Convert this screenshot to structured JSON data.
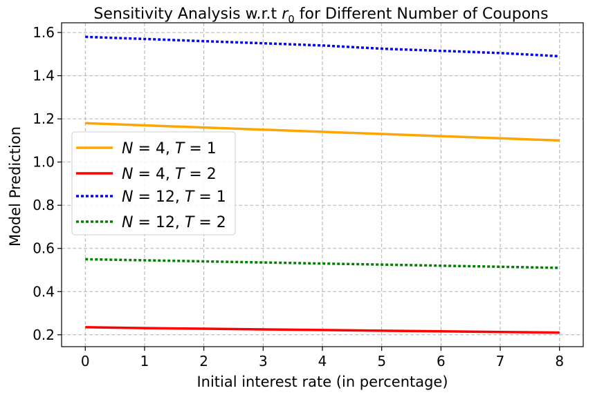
{
  "chart_data": {
    "type": "line",
    "title_prefix": "Sensitivity Analysis w.r.t ",
    "title_var": "r",
    "title_sub": "0",
    "title_suffix": " for Different Number of Coupons",
    "xlabel": "Initial interest rate (in percentage)",
    "ylabel": "Model Prediction",
    "x": [
      0,
      1,
      2,
      3,
      4,
      5,
      6,
      7,
      8
    ],
    "xlim": [
      -0.4,
      8.4
    ],
    "ylim": [
      0.145,
      1.645
    ],
    "xticks": [
      "0",
      "1",
      "2",
      "3",
      "4",
      "5",
      "6",
      "7",
      "8"
    ],
    "yticks": [
      "0.2",
      "0.4",
      "0.6",
      "0.8",
      "1.0",
      "1.2",
      "1.4",
      "1.6"
    ],
    "ytick_values": [
      0.2,
      0.4,
      0.6,
      0.8,
      1.0,
      1.2,
      1.4,
      1.6
    ],
    "grid": true,
    "legend_position": "center-left",
    "series": [
      {
        "name": "N = 4, T = 1",
        "n_var": "N",
        "n_val": "4",
        "t_var": "T",
        "t_val": "1",
        "color": "#ffa500",
        "style": "solid",
        "values": [
          1.18,
          1.17,
          1.16,
          1.15,
          1.14,
          1.13,
          1.12,
          1.11,
          1.1
        ]
      },
      {
        "name": "N = 4, T = 2",
        "n_var": "N",
        "n_val": "4",
        "t_var": "T",
        "t_val": "2",
        "color": "#ff0000",
        "style": "solid",
        "values": [
          0.235,
          0.231,
          0.228,
          0.225,
          0.222,
          0.219,
          0.216,
          0.213,
          0.21
        ]
      },
      {
        "name": "N = 12, T = 1",
        "n_var": "N",
        "n_val": "12",
        "t_var": "T",
        "t_val": "1",
        "color": "#0000ff",
        "style": "dotted",
        "values": [
          1.58,
          1.57,
          1.56,
          1.55,
          1.54,
          1.525,
          1.515,
          1.505,
          1.49
        ]
      },
      {
        "name": "N = 12, T = 2",
        "n_var": "N",
        "n_val": "12",
        "t_var": "T",
        "t_val": "2",
        "color": "#008000",
        "style": "dotted",
        "values": [
          0.55,
          0.545,
          0.54,
          0.535,
          0.53,
          0.525,
          0.52,
          0.515,
          0.51
        ]
      }
    ]
  }
}
